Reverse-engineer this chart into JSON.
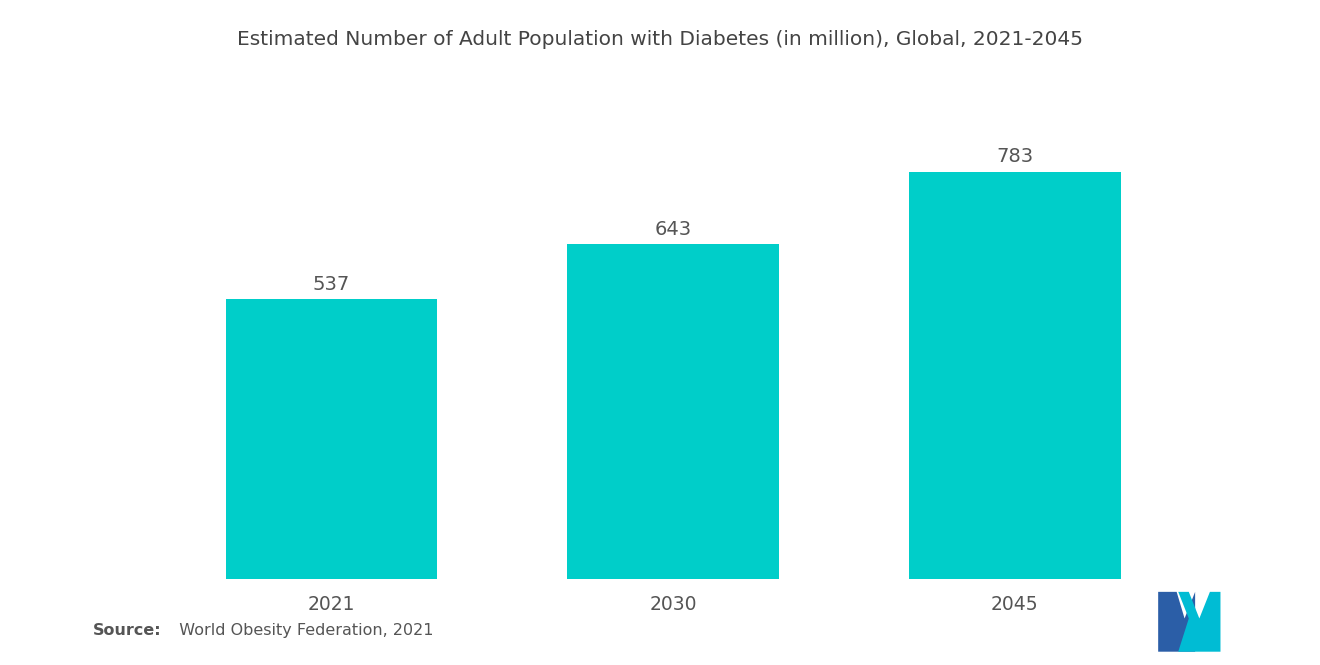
{
  "title": "Estimated Number of Adult Population with Diabetes (in million), Global, 2021-2045",
  "categories": [
    "2021",
    "2030",
    "2045"
  ],
  "values": [
    537,
    643,
    783
  ],
  "bar_color": "#00CEC9",
  "background_color": "#ffffff",
  "title_fontsize": 14.5,
  "label_fontsize": 13.5,
  "value_fontsize": 14,
  "source_bold": "Source:",
  "source_normal": "  World Obesity Federation, 2021",
  "bar_width": 0.62,
  "ylim": [
    0,
    870
  ],
  "logo_blue": "#2B5EA7",
  "logo_teal": "#00BCD4"
}
